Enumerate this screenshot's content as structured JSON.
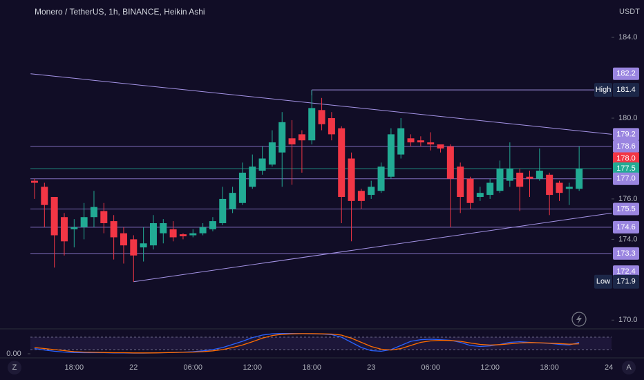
{
  "ui": {
    "left_button": "Z",
    "right_button": "A"
  },
  "chart_data": [
    {
      "type": "candlestick",
      "title": "Monero / TetherUS, 1h, BINANCE, Heikin Ashi",
      "unit": "USDT",
      "categories": [
        null,
        null,
        null,
        null,
        "18:00",
        null,
        null,
        null,
        null,
        null,
        "22",
        null,
        null,
        null,
        null,
        null,
        "06:00",
        null,
        null,
        null,
        null,
        null,
        "12:00",
        null,
        null,
        null,
        null,
        null,
        "18:00",
        null,
        null,
        null,
        null,
        null,
        "23",
        null,
        null,
        null,
        null,
        null,
        "06:00",
        null,
        null,
        null,
        null,
        null,
        "12:00",
        null,
        null,
        null,
        null,
        null,
        "18:00",
        null,
        null,
        null,
        null,
        null,
        "24"
      ],
      "open": [
        176.9,
        176.6,
        176.1,
        175.1,
        174.5,
        174.6,
        175.1,
        175.4,
        174.9,
        174.3,
        174.0,
        173.6,
        173.7,
        174.3,
        174.5,
        174.25,
        174.2,
        174.3,
        174.5,
        174.8,
        175.5,
        175.8,
        176.6,
        177.4,
        177.7,
        178.3,
        179.0,
        179.2,
        178.9,
        180.4,
        180.0,
        179.5,
        178.0,
        176.4,
        176.2,
        176.4,
        177.1,
        178.2,
        179.0,
        178.9,
        178.8,
        178.7,
        178.6,
        177.6,
        177.0,
        176.1,
        176.2,
        176.4,
        176.9,
        177.3,
        177.1,
        177.0,
        177.2,
        176.8,
        176.5,
        176.5,
        null,
        null,
        null
      ],
      "high": [
        177.0,
        176.8,
        176.1,
        175.3,
        175.0,
        175.8,
        176.4,
        175.8,
        175.2,
        174.6,
        174.2,
        174.6,
        175.2,
        175.0,
        174.9,
        174.3,
        174.5,
        174.8,
        175.1,
        176.6,
        176.6,
        177.8,
        178.2,
        178.6,
        179.4,
        180.3,
        179.9,
        179.4,
        181.4,
        181.0,
        180.3,
        179.6,
        178.3,
        176.5,
        176.9,
        177.8,
        179.5,
        180.0,
        179.2,
        179.1,
        179.3,
        178.7,
        178.7,
        177.8,
        177.1,
        176.6,
        177.0,
        177.9,
        178.8,
        177.5,
        177.4,
        178.5,
        177.3,
        176.9,
        176.8,
        178.6,
        null,
        null,
        null
      ],
      "low": [
        176.0,
        174.6,
        172.6,
        173.2,
        173.6,
        174.0,
        174.6,
        174.3,
        173.0,
        172.8,
        171.9,
        172.9,
        173.5,
        173.8,
        173.9,
        174.0,
        174.1,
        174.2,
        174.4,
        174.7,
        175.3,
        175.7,
        176.5,
        177.2,
        177.6,
        176.6,
        176.7,
        177.3,
        178.7,
        179.4,
        178.9,
        174.8,
        173.9,
        175.5,
        176.0,
        176.3,
        177.0,
        178.0,
        178.6,
        178.6,
        178.4,
        178.3,
        174.6,
        175.3,
        175.5,
        175.9,
        176.0,
        176.3,
        176.6,
        175.4,
        176.1,
        176.9,
        175.2,
        175.9,
        175.7,
        176.4,
        null,
        null,
        null
      ],
      "close": [
        176.8,
        175.7,
        174.2,
        173.9,
        174.6,
        175.1,
        175.6,
        174.8,
        174.1,
        173.7,
        173.2,
        173.8,
        174.8,
        174.8,
        174.1,
        174.15,
        174.3,
        174.6,
        174.9,
        176.0,
        176.3,
        177.3,
        177.6,
        178.0,
        178.8,
        179.8,
        178.7,
        178.9,
        180.5,
        179.7,
        179.2,
        176.1,
        175.9,
        175.9,
        176.6,
        177.6,
        179.2,
        179.5,
        178.8,
        178.8,
        178.7,
        178.5,
        177.0,
        176.1,
        175.8,
        176.3,
        176.8,
        177.5,
        177.5,
        176.6,
        177.0,
        177.4,
        176.2,
        176.3,
        176.6,
        177.5,
        null,
        null,
        null
      ],
      "up_color": "#22ab94",
      "down_color": "#f23645",
      "ylim": [
        169.6,
        185.85
      ],
      "yticks": [
        {
          "value": 184,
          "label": "184.0"
        },
        {
          "value": 180,
          "label": "180.0"
        },
        {
          "value": 176,
          "label": "176.0"
        },
        {
          "value": 174,
          "label": "174.0"
        },
        {
          "value": 170,
          "label": "170.0"
        }
      ],
      "levels": [
        {
          "value": 182.2,
          "label": "182.2",
          "color": "#9a85e0",
          "line": false
        },
        {
          "value": 179.2,
          "label": "179.2",
          "color": "#9a85e0",
          "line": false
        },
        {
          "value": 178.6,
          "label": "178.6",
          "color": "#9a85e0",
          "line": true
        },
        {
          "value": 178,
          "label": "178.0",
          "color": "#f23645",
          "line": false
        },
        {
          "value": 177.5,
          "label": "177.5",
          "color": "#22ab94",
          "line": true
        },
        {
          "value": 177,
          "label": "177.0",
          "color": "#9a85e0",
          "line": true
        },
        {
          "value": 175.5,
          "label": "175.5",
          "color": "#9a85e0",
          "line": true
        },
        {
          "value": 174.6,
          "label": "174.6",
          "color": "#9a85e0",
          "line": true
        },
        {
          "value": 173.3,
          "label": "173.3",
          "color": "#9a85e0",
          "line": true
        },
        {
          "value": 172.4,
          "label": "172.4",
          "color": "#9a85e0",
          "line": false
        }
      ],
      "trendlines": [
        {
          "start": [
            -0.4,
            182.2
          ],
          "end": [
            58.3,
            179.2
          ]
        },
        {
          "start": [
            10,
            171.9
          ],
          "end": [
            58.3,
            175.3
          ]
        }
      ],
      "high_marker": {
        "label": "High",
        "index": 28,
        "value": 181.4
      },
      "low_marker": {
        "label": "Low",
        "index": 10,
        "value": 171.9
      }
    },
    {
      "type": "line",
      "ylim": [
        0,
        100
      ],
      "yticks": [
        {
          "value": 0,
          "label": "0.00"
        }
      ],
      "bands": [
        20,
        80
      ],
      "series": [
        {
          "color": "#2962ff",
          "values": [
            25,
            18,
            12,
            8,
            6,
            5,
            5,
            5,
            4,
            4,
            3,
            3,
            4,
            5,
            6,
            8,
            10,
            14,
            20,
            30,
            45,
            60,
            78,
            90,
            96,
            98,
            98,
            97,
            96,
            95,
            92,
            80,
            55,
            30,
            15,
            12,
            20,
            40,
            60,
            68,
            70,
            68,
            65,
            55,
            40,
            35,
            38,
            45,
            55,
            58,
            55,
            52,
            50,
            45,
            42,
            55,
            null,
            null,
            null
          ]
        },
        {
          "color": "#ff6d00",
          "values": [
            30,
            25,
            20,
            15,
            10,
            8,
            7,
            6,
            5,
            5,
            4,
            4,
            4,
            5,
            6,
            7,
            8,
            10,
            14,
            20,
            30,
            42,
            58,
            75,
            88,
            94,
            96,
            97,
            97,
            96,
            95,
            90,
            75,
            55,
            35,
            22,
            18,
            25,
            40,
            55,
            62,
            65,
            64,
            60,
            52,
            45,
            42,
            44,
            48,
            52,
            54,
            53,
            51,
            49,
            46,
            48,
            null,
            null,
            null
          ]
        }
      ]
    }
  ]
}
